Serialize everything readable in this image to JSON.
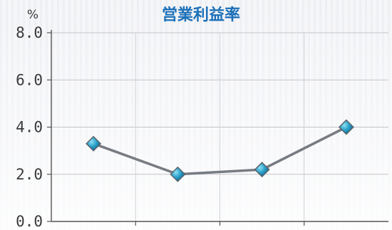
{
  "chart_data": {
    "type": "line",
    "title": "営業利益率",
    "unit": "%",
    "categories": [
      "",
      "",
      "",
      ""
    ],
    "series": [
      {
        "values": [
          3.3,
          2.0,
          2.2,
          4.0
        ]
      }
    ],
    "ylim": [
      0,
      8
    ],
    "yticks": [
      "0.0",
      "2.0",
      "4.0",
      "6.0",
      "8.0"
    ],
    "grid": true,
    "line_color": "#777b82",
    "marker_color": "#2aa0c8",
    "title_color": "#1a6fb8"
  }
}
